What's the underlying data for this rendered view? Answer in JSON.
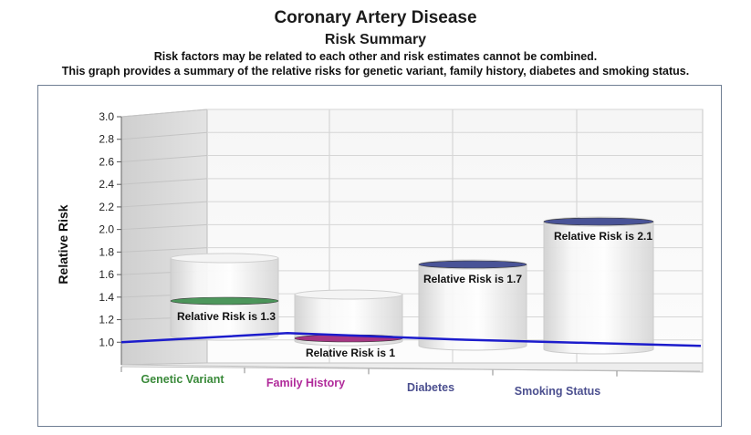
{
  "title": "Coronary Artery Disease",
  "subtitle": "Risk Summary",
  "description": [
    "Risk factors may be related to each other and risk estimates cannot be combined.",
    "This graph provides a summary of the relative risks for genetic variant, family history, diabetes and smoking status."
  ],
  "chart_data": {
    "type": "bar",
    "style": "3d-cylinder",
    "title": "Coronary Artery Disease",
    "subtitle": "Risk Summary",
    "ylabel": "Relative Risk",
    "xlabel": "",
    "ylim": [
      0.8,
      3.0
    ],
    "yticks": [
      "1.0",
      "1.2",
      "1.4",
      "1.6",
      "1.8",
      "2.0",
      "2.2",
      "2.4",
      "2.6",
      "2.8",
      "3.0"
    ],
    "categories": [
      "Genetic Variant",
      "Family History",
      "Diabetes",
      "Smoking Status"
    ],
    "category_colors": [
      "#3a8a3a",
      "#b02a9a",
      "#4b4f8f",
      "#4b4f8f"
    ],
    "values": [
      1.3,
      1,
      1.7,
      2.1
    ],
    "data_labels": [
      "Relative Risk is 1.3",
      "Relative Risk is 1",
      "Relative Risk is 1.7",
      "Relative Risk is 2.1"
    ],
    "marker_colors": [
      "#3f8f4f",
      "#a0267a",
      "#3b4690",
      "#3b4690"
    ],
    "reference_line": {
      "value": 1.0,
      "color": "#1c1ccc"
    },
    "grid": true,
    "legend": "none"
  }
}
